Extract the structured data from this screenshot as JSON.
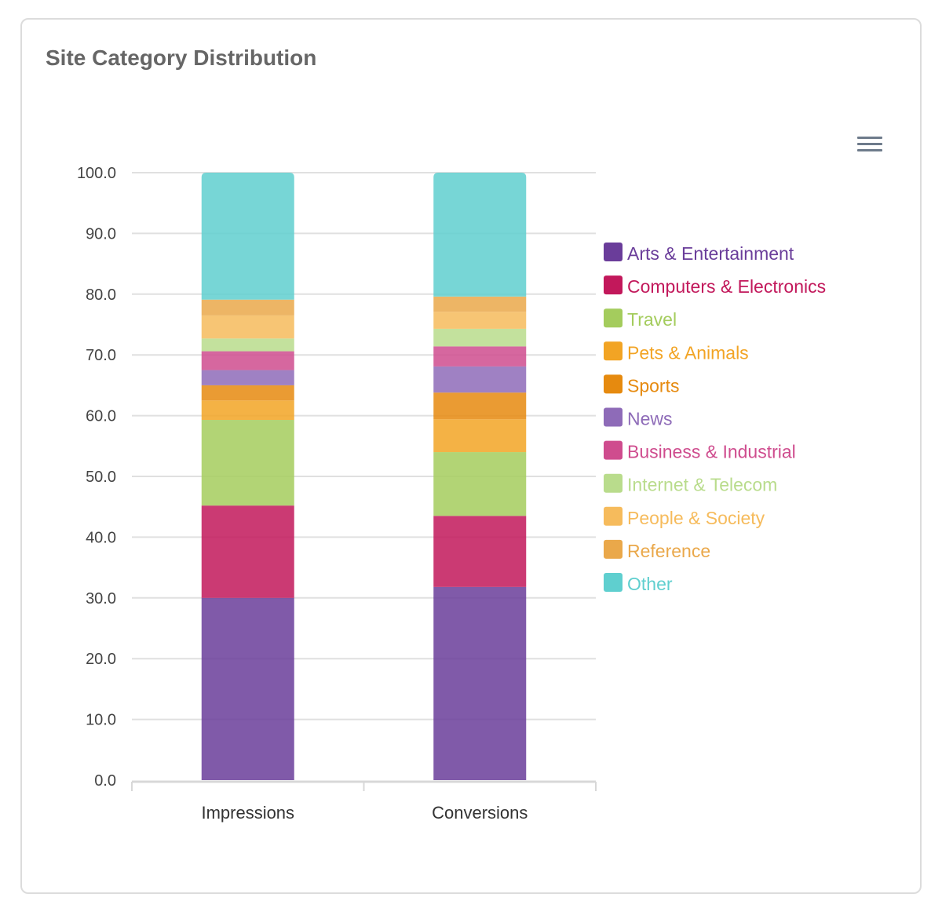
{
  "title": "Site Category Distribution",
  "menu_icon": "hamburger-menu-icon",
  "chart_data": {
    "type": "bar",
    "stacked": true,
    "categories": [
      "Impressions",
      "Conversions"
    ],
    "ylim": [
      0,
      100
    ],
    "yticks": [
      "0.0",
      "10.0",
      "20.0",
      "30.0",
      "40.0",
      "50.0",
      "60.0",
      "70.0",
      "80.0",
      "90.0",
      "100.0"
    ],
    "legend_position": "right",
    "grid": true,
    "series": [
      {
        "name": "Arts & Entertainment",
        "color": "#6a3d9a",
        "values": [
          30.0,
          31.8
        ]
      },
      {
        "name": "Computers & Electronics",
        "color": "#c2185b",
        "values": [
          15.2,
          11.7
        ]
      },
      {
        "name": "Travel",
        "color": "#a4cc5d",
        "values": [
          14.1,
          10.5
        ]
      },
      {
        "name": "Pets & Animals",
        "color": "#f2a424",
        "values": [
          3.2,
          5.4
        ]
      },
      {
        "name": "Sports",
        "color": "#e68a0f",
        "values": [
          2.5,
          4.4
        ]
      },
      {
        "name": "News",
        "color": "#8e6bb8",
        "values": [
          2.5,
          4.3
        ]
      },
      {
        "name": "Business & Industrial",
        "color": "#cf4c8e",
        "values": [
          3.1,
          3.3
        ]
      },
      {
        "name": "Internet & Telecom",
        "color": "#b9dc8c",
        "values": [
          2.1,
          2.9
        ]
      },
      {
        "name": "People & Society",
        "color": "#f6bb5c",
        "values": [
          3.8,
          2.8
        ]
      },
      {
        "name": "Reference",
        "color": "#eaa84a",
        "values": [
          2.6,
          2.5
        ]
      },
      {
        "name": "Other",
        "color": "#5fcfcf",
        "values": [
          20.9,
          20.4
        ]
      }
    ]
  }
}
